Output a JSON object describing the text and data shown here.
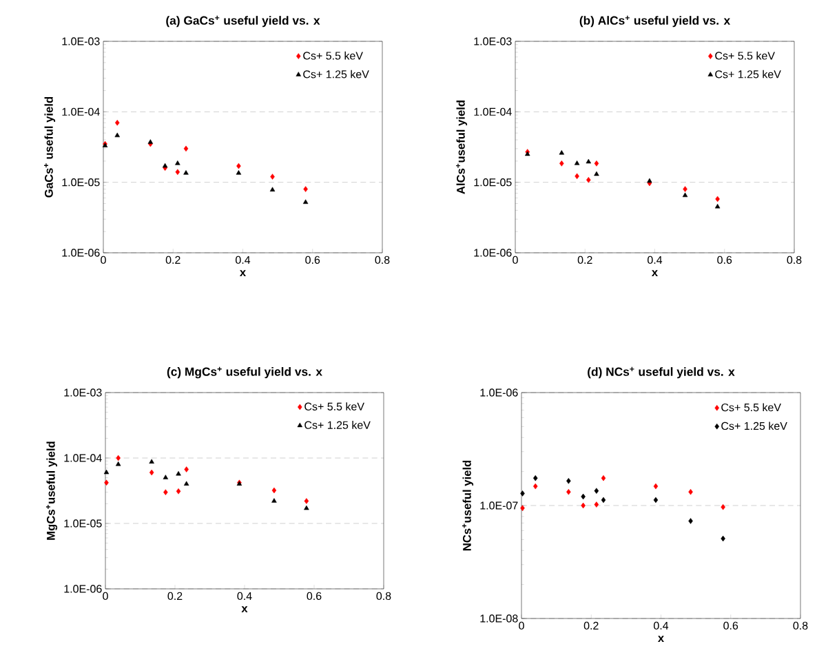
{
  "chart_data": [
    {
      "type": "scatter",
      "title": "(a) GaCs$^{+}$ useful yield vs. x",
      "xlabel": "x",
      "ylabel": "GaCs$^{+}$ useful yield",
      "log": "y",
      "grid": "y",
      "legend": "top right",
      "xlim": [
        0,
        0.8
      ],
      "xticks": [
        0,
        0.2,
        0.4,
        0.6,
        0.8
      ],
      "ylim": [
        1e-06,
        0.001
      ],
      "yticks": [
        {
          "value": 1e-06,
          "label": "1.0E-06"
        },
        {
          "value": 1e-05,
          "label": "1.0E-05"
        },
        {
          "value": 0.0001,
          "label": "1.0E-04"
        },
        {
          "value": 0.001,
          "label": "1.0E-03"
        }
      ],
      "x": [
        0.005,
        0.04,
        0.135,
        0.177,
        0.213,
        0.237,
        0.388,
        0.485,
        0.58
      ],
      "series": [
        {
          "name": "Cs+ 5.5 keV",
          "color": "#ff0000",
          "marker": "diamond",
          "values": [
            3.5e-05,
            7e-05,
            3.5e-05,
            1.6e-05,
            1.4e-05,
            3e-05,
            1.7e-05,
            1.2e-05,
            8e-06
          ]
        },
        {
          "name": "Cs+ 1.25 keV",
          "color": "#000000",
          "marker": "triangle",
          "values": [
            3.3e-05,
            4.6e-05,
            3.7e-05,
            1.7e-05,
            1.85e-05,
            1.35e-05,
            1.35e-05,
            7.8e-06,
            5.2e-06
          ]
        }
      ]
    },
    {
      "type": "scatter",
      "title": "(b) AlCs$^{+}$ useful yield vs. x",
      "xlabel": "x",
      "ylabel": "AlCs$^{+}$useful yield",
      "log": "y",
      "grid": "y",
      "legend": "top right",
      "xlim": [
        0,
        0.8
      ],
      "xticks": [
        0,
        0.2,
        0.4,
        0.6,
        0.8
      ],
      "ylim": [
        1e-06,
        0.001
      ],
      "yticks": [
        {
          "value": 1e-06,
          "label": "1.0E-06"
        },
        {
          "value": 1e-05,
          "label": "1.0E-05"
        },
        {
          "value": 0.0001,
          "label": "1.0E-04"
        },
        {
          "value": 0.001,
          "label": "1.0E-03"
        }
      ],
      "x": [
        0.035,
        0.133,
        0.177,
        0.21,
        0.233,
        0.385,
        0.487,
        0.58
      ],
      "series": [
        {
          "name": "Cs+ 5.5 keV",
          "color": "#ff0000",
          "marker": "diamond",
          "values": [
            2.7e-05,
            1.85e-05,
            1.22e-05,
            1.08e-05,
            1.85e-05,
            9.7e-06,
            8e-06,
            5.8e-06
          ]
        },
        {
          "name": "Cs+ 1.25 keV",
          "color": "#000000",
          "marker": "triangle",
          "values": [
            2.5e-05,
            2.6e-05,
            1.85e-05,
            1.95e-05,
            1.3e-05,
            1.04e-05,
            6.5e-06,
            4.5e-06
          ]
        }
      ]
    },
    {
      "type": "scatter",
      "title": "(c) MgCs$^{+}$ useful yield vs. x",
      "xlabel": "x",
      "ylabel": "MgCs$^{+}$useful yield",
      "log": "y",
      "grid": "y",
      "legend": "top right",
      "xlim": [
        0,
        0.8
      ],
      "xticks": [
        0,
        0.2,
        0.4,
        0.6,
        0.8
      ],
      "ylim": [
        1e-06,
        0.001
      ],
      "yticks": [
        {
          "value": 1e-06,
          "label": "1.0E-06"
        },
        {
          "value": 1e-05,
          "label": "1.0E-05"
        },
        {
          "value": 0.0001,
          "label": "1.0E-04"
        },
        {
          "value": 0.001,
          "label": "1.0E-03"
        }
      ],
      "x": [
        0.003,
        0.037,
        0.133,
        0.173,
        0.21,
        0.233,
        0.385,
        0.485,
        0.578
      ],
      "series": [
        {
          "name": "Cs+ 5.5 keV",
          "color": "#ff0000",
          "marker": "diamond",
          "values": [
            4.2e-05,
            0.0001,
            6e-05,
            3e-05,
            3.1e-05,
            6.7e-05,
            4.2e-05,
            3.2e-05,
            2.2e-05
          ]
        },
        {
          "name": "Cs+ 1.25 keV",
          "color": "#000000",
          "marker": "triangle",
          "values": [
            6e-05,
            8e-05,
            8.7e-05,
            5e-05,
            5.7e-05,
            4e-05,
            4e-05,
            2.2e-05,
            1.7e-05
          ]
        }
      ]
    },
    {
      "type": "scatter",
      "title": "(d) NCs$^{+}$ useful yield vs. x",
      "xlabel": "x",
      "ylabel": "NCs$^{+}$useful yield",
      "log": "y",
      "grid": "y",
      "legend": "top right",
      "xlim": [
        0,
        0.8
      ],
      "xticks": [
        0,
        0.2,
        0.4,
        0.6,
        0.8
      ],
      "ylim": [
        1e-08,
        1e-06
      ],
      "yticks": [
        {
          "value": 1e-08,
          "label": "1.0E-08"
        },
        {
          "value": 1e-07,
          "label": "1.0E-07"
        },
        {
          "value": 1e-06,
          "label": "1.0E-06"
        }
      ],
      "x": [
        0.003,
        0.04,
        0.135,
        0.177,
        0.215,
        0.235,
        0.385,
        0.485,
        0.578
      ],
      "series": [
        {
          "name": "Cs+ 5.5 keV",
          "color": "#ff0000",
          "marker": "diamond",
          "values": [
            9.5e-08,
            1.48e-07,
            1.32e-07,
            1e-07,
            1.02e-07,
            1.75e-07,
            1.48e-07,
            1.32e-07,
            9.7e-08
          ]
        },
        {
          "name": "Cs+ 1.25 keV",
          "color": "#000000",
          "marker": "diamond",
          "values": [
            1.28e-07,
            1.75e-07,
            1.65e-07,
            1.2e-07,
            1.35e-07,
            1.12e-07,
            1.12e-07,
            7.3e-08,
            5.1e-08
          ]
        }
      ]
    }
  ]
}
